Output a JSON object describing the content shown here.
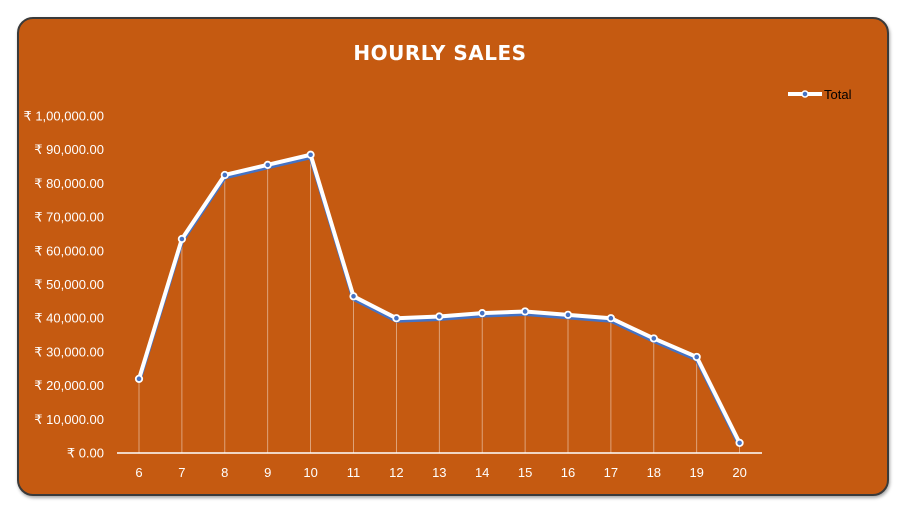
{
  "chart_data": {
    "type": "line",
    "title": "HOURLY SALES",
    "xlabel": "",
    "ylabel": "",
    "categories": [
      "6",
      "7",
      "8",
      "9",
      "10",
      "11",
      "12",
      "13",
      "14",
      "15",
      "16",
      "17",
      "18",
      "19",
      "20"
    ],
    "series": [
      {
        "name": "Total",
        "values": [
          22000,
          63500,
          82500,
          85500,
          88500,
          46500,
          40000,
          40500,
          41500,
          42000,
          41000,
          40000,
          34000,
          28500,
          3000
        ]
      }
    ],
    "yticks": [
      {
        "value": 0,
        "label": "₹ 0.00"
      },
      {
        "value": 10000,
        "label": "₹ 10,000.00"
      },
      {
        "value": 20000,
        "label": "₹ 20,000.00"
      },
      {
        "value": 30000,
        "label": "₹ 30,000.00"
      },
      {
        "value": 40000,
        "label": "₹ 40,000.00"
      },
      {
        "value": 50000,
        "label": "₹ 50,000.00"
      },
      {
        "value": 60000,
        "label": "₹ 60,000.00"
      },
      {
        "value": 70000,
        "label": "₹ 70,000.00"
      },
      {
        "value": 80000,
        "label": "₹ 80,000.00"
      },
      {
        "value": 90000,
        "label": "₹ 90,000.00"
      },
      {
        "value": 100000,
        "label": "₹ 1,00,000.00"
      }
    ],
    "ylim": [
      0,
      100000
    ],
    "grid": false,
    "drop_lines": true,
    "legend_position": "top-right",
    "colors": {
      "background": "#C55A11",
      "line": "#FFFFFF",
      "line_shadow": "#4472C4",
      "text": "#FFFFFF",
      "legend_text": "#000000"
    }
  }
}
